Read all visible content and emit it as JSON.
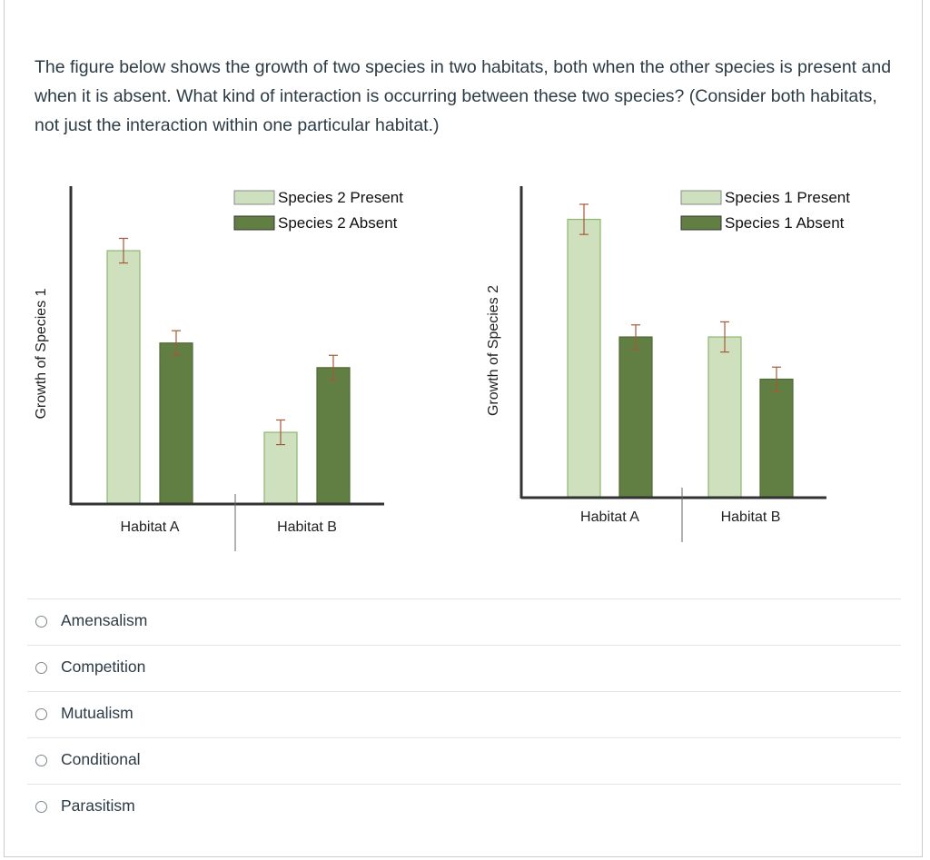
{
  "question": {
    "text": "The figure below shows the growth of two species in two habitats, both when the other species is present and when it is absent. What kind of interaction is occurring between these two species? (Consider both habitats, not just the interaction within one particular habitat.)"
  },
  "colors": {
    "present": "#cfe0be",
    "present_border": "#8cb86e",
    "absent": "#627f43",
    "absent_border": "#4e6a34",
    "error_bar": "#a45a3a",
    "axis": "#333333"
  },
  "chart_data": [
    {
      "type": "bar",
      "title": "",
      "xlabel": "",
      "ylabel": "Growth of Species 1",
      "categories": [
        "Habitat A",
        "Habitat B"
      ],
      "ylim": [
        0,
        100
      ],
      "legend_position": "top-right",
      "series": [
        {
          "name": "Species 2 Present",
          "color_key": "present",
          "values": [
            82,
            23
          ],
          "errors": [
            4,
            4
          ]
        },
        {
          "name": "Species 2 Absent",
          "color_key": "absent",
          "values": [
            52,
            44
          ],
          "errors": [
            4,
            4
          ]
        }
      ]
    },
    {
      "type": "bar",
      "title": "",
      "xlabel": "",
      "ylabel": "Growth of Species 2",
      "categories": [
        "Habitat A",
        "Habitat B"
      ],
      "ylim": [
        0,
        100
      ],
      "legend_position": "top-right",
      "series": [
        {
          "name": "Species 1 Present",
          "color_key": "present",
          "values": [
            92,
            53
          ],
          "errors": [
            5,
            5
          ]
        },
        {
          "name": "Species 1 Absent",
          "color_key": "absent",
          "values": [
            53,
            39
          ],
          "errors": [
            4,
            4
          ]
        }
      ]
    }
  ],
  "answers": [
    {
      "label": "Amensalism"
    },
    {
      "label": "Competition"
    },
    {
      "label": "Mutualism"
    },
    {
      "label": "Conditional"
    },
    {
      "label": "Parasitism"
    }
  ]
}
